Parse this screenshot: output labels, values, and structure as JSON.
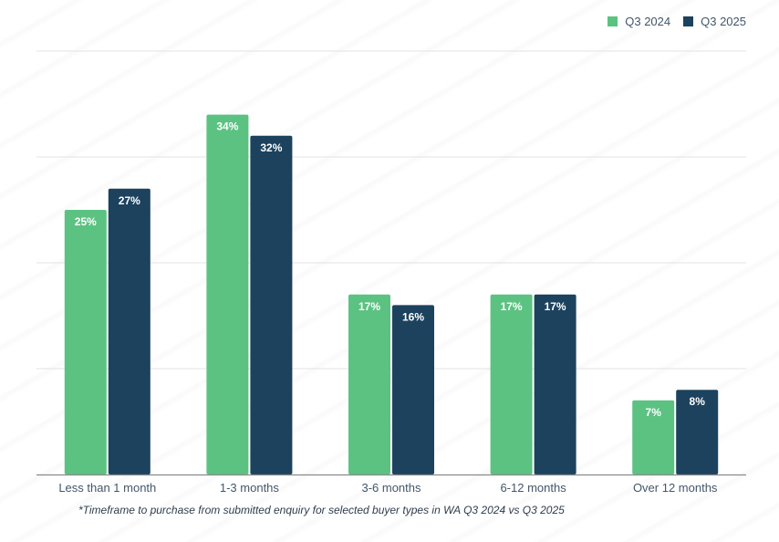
{
  "chart_data": {
    "type": "bar",
    "title": "",
    "xlabel": "",
    "ylabel": "",
    "ylim": [
      0,
      40
    ],
    "grid": true,
    "grid_step": 10,
    "legend_position": "top-right",
    "categories": [
      "Less than 1 month",
      "1-3 months",
      "3-6 months",
      "6-12 months",
      "Over 12 months"
    ],
    "series": [
      {
        "name": "Q3 2024",
        "color": "#5cc282",
        "values": [
          25,
          34,
          17,
          17,
          7
        ],
        "labels": [
          "25%",
          "34%",
          "17%",
          "17%",
          "7%"
        ]
      },
      {
        "name": "Q3 2025",
        "color": "#1c425e",
        "values": [
          27,
          32,
          16,
          17,
          8
        ],
        "labels": [
          "27%",
          "32%",
          "16%",
          "17%",
          "8%"
        ]
      }
    ],
    "footnote": "*Timeframe to purchase from submitted enquiry for selected buyer types in WA Q3 2024 vs Q3 2025"
  }
}
